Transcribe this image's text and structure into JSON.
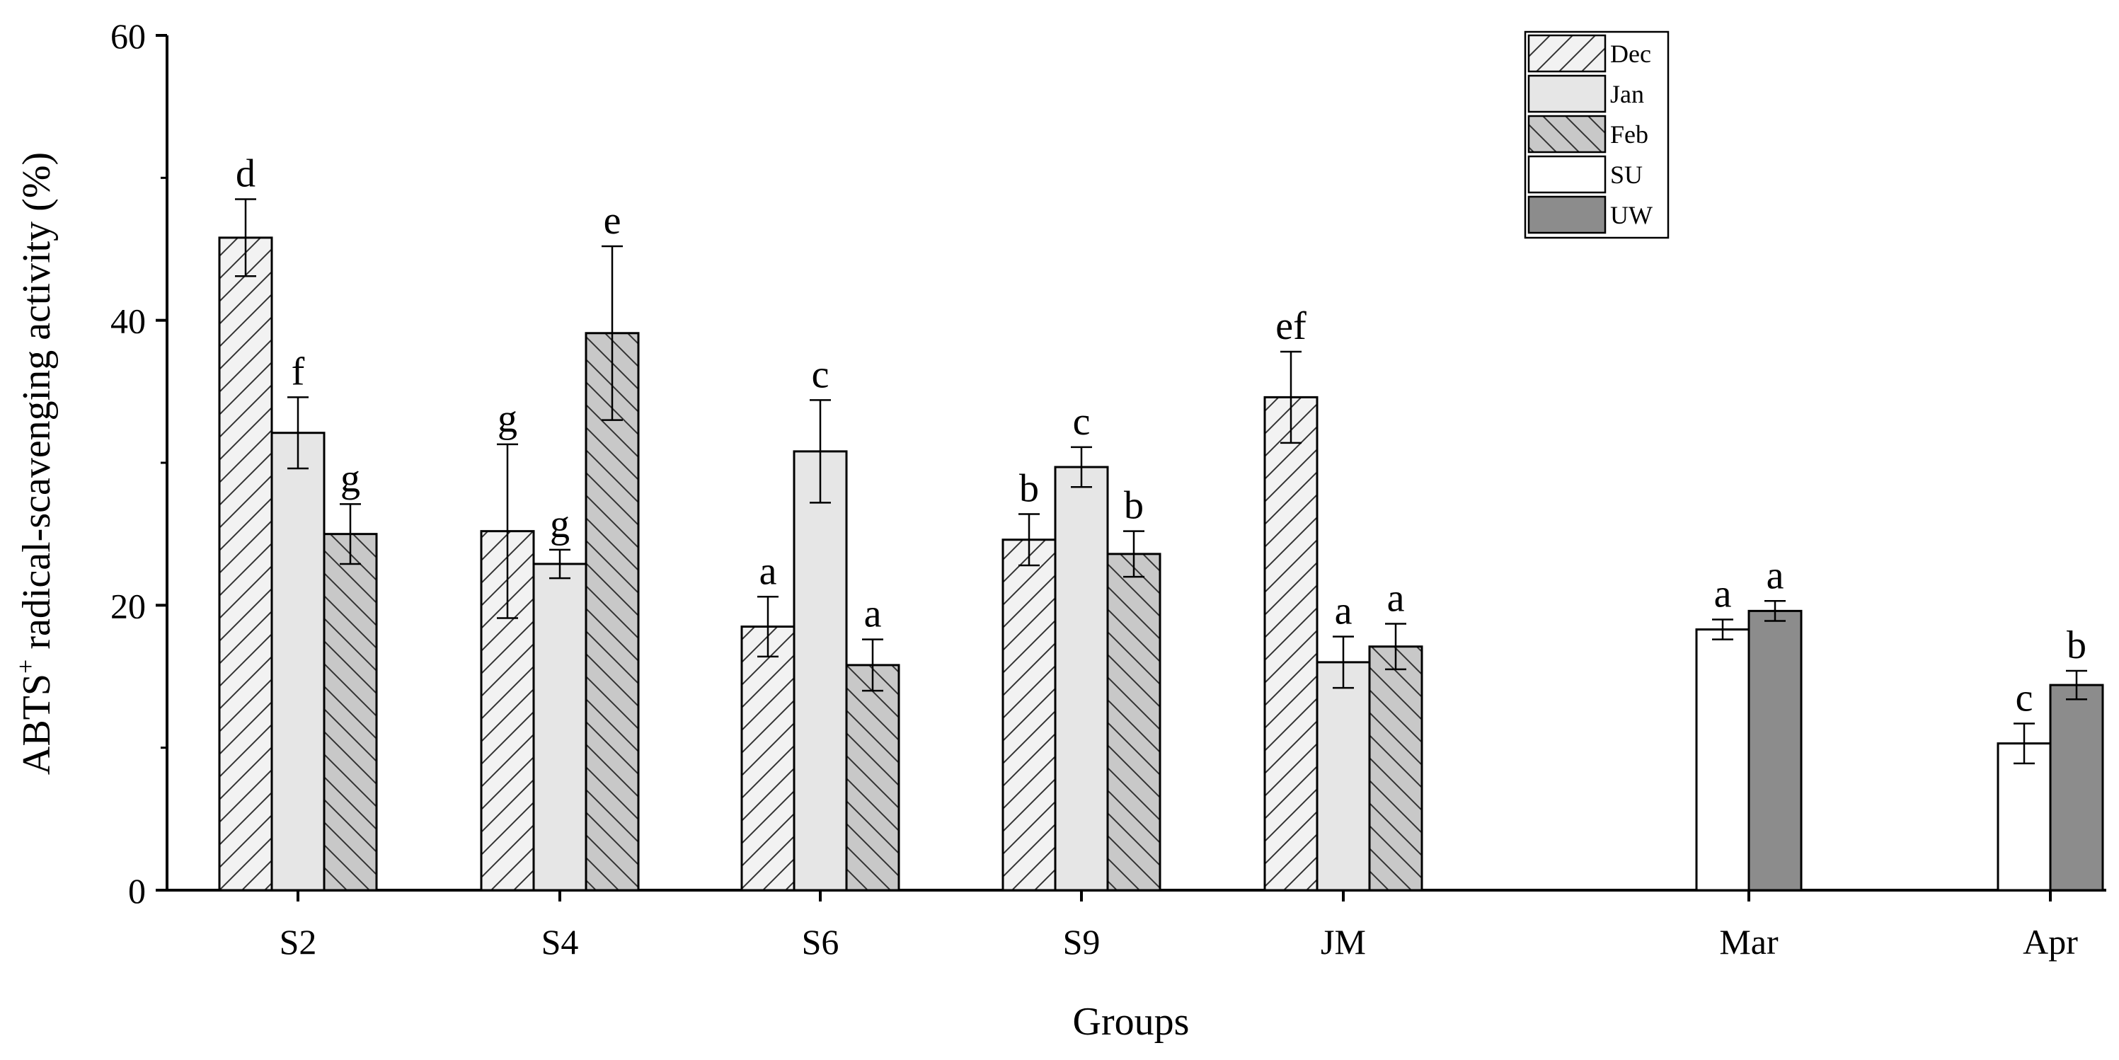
{
  "chart_data": {
    "type": "bar",
    "title": "",
    "xlabel": "Groups",
    "ylabel": {
      "main": "ABTS",
      "superscript": "+",
      "rest": " radical-scavenging activity (%)"
    },
    "ylim": [
      0,
      60
    ],
    "yticks": [
      0,
      20,
      40,
      60
    ],
    "grid": false,
    "legend_position": "top-right",
    "legend": [
      {
        "name": "Dec",
        "pattern": "diag-up",
        "color": "#f2f2f2"
      },
      {
        "name": "Jan",
        "pattern": "none",
        "color": "#e6e6e6"
      },
      {
        "name": "Feb",
        "pattern": "diag-down",
        "color": "#c8c8c8"
      },
      {
        "name": "SU",
        "pattern": "none",
        "color": "#ffffff"
      },
      {
        "name": "UW",
        "pattern": "none",
        "color": "#8c8c8c"
      }
    ],
    "groups": [
      {
        "label": "S2",
        "bars": [
          {
            "series": "Dec",
            "value": 45.8,
            "error": 2.7,
            "letter": "d"
          },
          {
            "series": "Jan",
            "value": 32.1,
            "error": 2.5,
            "letter": "f"
          },
          {
            "series": "Feb",
            "value": 25.0,
            "error": 2.1,
            "letter": "g"
          }
        ]
      },
      {
        "label": "S4",
        "bars": [
          {
            "series": "Dec",
            "value": 25.2,
            "error": 6.1,
            "letter": "g"
          },
          {
            "series": "Jan",
            "value": 22.9,
            "error": 1.0,
            "letter": "g"
          },
          {
            "series": "Feb",
            "value": 39.1,
            "error": 6.1,
            "letter": "e"
          }
        ]
      },
      {
        "label": "S6",
        "bars": [
          {
            "series": "Dec",
            "value": 18.5,
            "error": 2.1,
            "letter": "a"
          },
          {
            "series": "Jan",
            "value": 30.8,
            "error": 3.6,
            "letter": "c"
          },
          {
            "series": "Feb",
            "value": 15.8,
            "error": 1.8,
            "letter": "a"
          }
        ]
      },
      {
        "label": "S9",
        "bars": [
          {
            "series": "Dec",
            "value": 24.6,
            "error": 1.8,
            "letter": "b"
          },
          {
            "series": "Jan",
            "value": 29.7,
            "error": 1.4,
            "letter": "c"
          },
          {
            "series": "Feb",
            "value": 23.6,
            "error": 1.6,
            "letter": "b"
          }
        ]
      },
      {
        "label": "JM",
        "bars": [
          {
            "series": "Dec",
            "value": 34.6,
            "error": 3.2,
            "letter": "ef"
          },
          {
            "series": "Jan",
            "value": 16.0,
            "error": 1.8,
            "letter": "a"
          },
          {
            "series": "Feb",
            "value": 17.1,
            "error": 1.6,
            "letter": "a"
          }
        ]
      },
      {
        "label": "Mar",
        "bars": [
          {
            "series": "SU",
            "value": 18.3,
            "error": 0.7,
            "letter": "a"
          },
          {
            "series": "UW",
            "value": 19.6,
            "error": 0.7,
            "letter": "a"
          }
        ]
      },
      {
        "label": "Apr",
        "bars": [
          {
            "series": "SU",
            "value": 10.3,
            "error": 1.4,
            "letter": "c"
          },
          {
            "series": "UW",
            "value": 14.4,
            "error": 1.0,
            "letter": "b"
          }
        ]
      }
    ]
  }
}
